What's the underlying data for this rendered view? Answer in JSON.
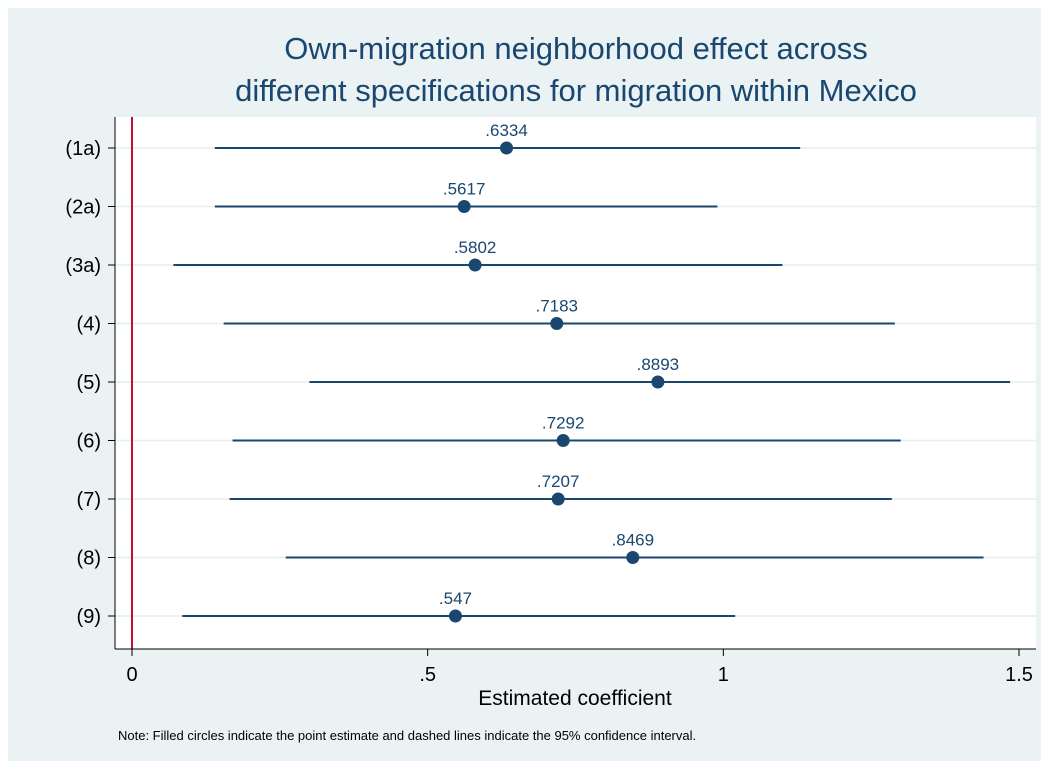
{
  "chart_data": {
    "type": "scatter",
    "orientation": "horizontal-dot-whisker",
    "title": [
      "Own-migration neighborhood effect across",
      "different specifications for migration within Mexico"
    ],
    "xlabel": "Estimated coefficient",
    "ylabel": "",
    "xlim": [
      0,
      1.5
    ],
    "xticks": [
      0,
      0.5,
      1,
      1.5
    ],
    "xtick_labels": [
      "0",
      ".5",
      "1",
      "1.5"
    ],
    "reference_line": {
      "x": 0,
      "color": "#c0103a"
    },
    "categories": [
      "(1a)",
      "(2a)",
      "(3a)",
      "(4)",
      "(5)",
      "(6)",
      "(7)",
      "(8)",
      "(9)"
    ],
    "estimates": [
      0.6334,
      0.5617,
      0.5802,
      0.7183,
      0.8893,
      0.7292,
      0.7207,
      0.8469,
      0.547
    ],
    "estimate_labels": [
      ".6334",
      ".5617",
      ".5802",
      ".7183",
      ".8893",
      ".7292",
      ".7207",
      ".8469",
      ".547"
    ],
    "ci_lower": [
      0.14,
      0.14,
      0.07,
      0.155,
      0.3,
      0.17,
      0.165,
      0.26,
      0.085
    ],
    "ci_upper": [
      1.13,
      0.99,
      1.1,
      1.29,
      1.485,
      1.3,
      1.285,
      1.44,
      1.02
    ],
    "note": "Note: Filled circles indicate the point estimate and dashed lines indicate the 95% confidence interval.",
    "grid": "horizontal",
    "colors": {
      "marker": "#1a476f",
      "background": "#eaf2f3",
      "plot_background": "#ffffff",
      "grid": "#e6eef0",
      "reference": "#c0103a"
    }
  }
}
